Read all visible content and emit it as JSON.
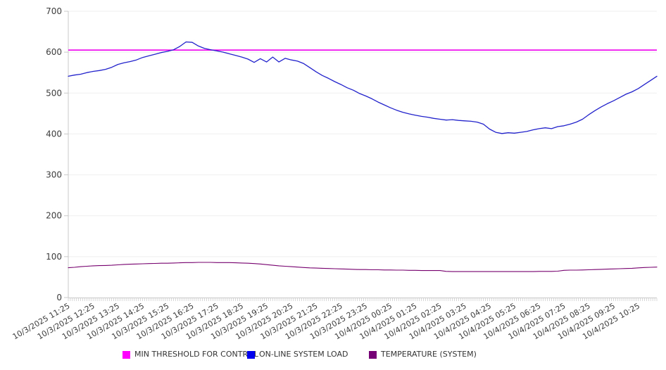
{
  "chart_data": {
    "type": "line",
    "title": "",
    "xlabel": "",
    "ylabel": "",
    "ylim": [
      0,
      700
    ],
    "yticks": [
      0,
      100,
      200,
      300,
      400,
      500,
      600,
      700
    ],
    "grid": "horizontal",
    "legend_position": "bottom",
    "x_tick_interval": "1 hour",
    "point_interval_minutes": 15,
    "categories": [
      "10/3/2025 11:25",
      "10/3/2025 12:25",
      "10/3/2025 13:25",
      "10/3/2025 14:25",
      "10/3/2025 15:25",
      "10/3/2025 16:25",
      "10/3/2025 17:25",
      "10/3/2025 18:25",
      "10/3/2025 19:25",
      "10/3/2025 20:25",
      "10/3/2025 21:25",
      "10/3/2025 22:25",
      "10/3/2025 23:25",
      "10/4/2025 00:25",
      "10/4/2025 01:25",
      "10/4/2025 02:25",
      "10/4/2025 03:25",
      "10/4/2025 04:25",
      "10/4/2025 05:25",
      "10/4/2025 06:25",
      "10/4/2025 07:25",
      "10/4/2025 08:25",
      "10/4/2025 09:25",
      "10/4/2025 10:25"
    ],
    "series": [
      {
        "name": "MIN THRESHOLD FOR CONTROL",
        "type": "threshold",
        "color": "#EE00EE",
        "swatch_color": "#FF00FF",
        "value": 605
      },
      {
        "name": "ON-LINE SYSTEM LOAD",
        "type": "line",
        "color": "#2222CC",
        "swatch_color": "#0000EE",
        "values": [
          541,
          544,
          546,
          550,
          553,
          555,
          558,
          563,
          570,
          574,
          577,
          581,
          587,
          591,
          595,
          599,
          602,
          606,
          614,
          625,
          624,
          615,
          609,
          606,
          603,
          600,
          596,
          592,
          588,
          583,
          575,
          584,
          576,
          588,
          576,
          585,
          581,
          578,
          572,
          562,
          552,
          543,
          536,
          528,
          521,
          513,
          507,
          499,
          493,
          486,
          478,
          471,
          464,
          458,
          453,
          449,
          446,
          443,
          441,
          438,
          436,
          434,
          435,
          433,
          432,
          431,
          429,
          424,
          412,
          404,
          401,
          403,
          402,
          404,
          406,
          410,
          413,
          415,
          413,
          418,
          420,
          424,
          429,
          436,
          447,
          457,
          466,
          474,
          481,
          489,
          497,
          503,
          511,
          521,
          531,
          541
        ]
      },
      {
        "name": "TEMPERATURE (SYSTEM)",
        "type": "line",
        "color": "#76006E",
        "swatch_color": "#760076",
        "values": [
          73,
          74,
          75.5,
          76.5,
          77.5,
          78,
          78.5,
          79,
          80,
          81,
          81.5,
          82,
          82.5,
          83,
          83.5,
          84,
          84,
          84.5,
          85,
          85.5,
          85.5,
          86,
          86,
          86,
          85.5,
          85.5,
          85.5,
          85,
          84.5,
          84,
          83,
          82,
          80.5,
          79,
          77.5,
          76.5,
          75.5,
          74.5,
          73.5,
          72.5,
          72,
          71.5,
          71,
          70.5,
          70,
          69.5,
          69,
          68.5,
          68.5,
          68,
          68,
          67.5,
          67.5,
          67,
          67,
          66.5,
          66.5,
          66,
          66,
          66,
          66,
          64,
          63.5,
          63.5,
          63.5,
          63.5,
          63.5,
          63.5,
          63.5,
          63.5,
          63.5,
          63.5,
          63.5,
          63.5,
          63.5,
          63.5,
          64,
          64,
          64,
          64.5,
          66.5,
          67,
          67,
          67.5,
          68,
          68.5,
          69,
          69.5,
          70,
          70.5,
          71,
          71.5,
          72.5,
          73.5,
          74,
          74.5
        ]
      }
    ]
  },
  "axis_style": {
    "tick_label_color": "#3c3c3c",
    "grid_color": "#efefef",
    "axis_color": "#c9c9c9"
  }
}
